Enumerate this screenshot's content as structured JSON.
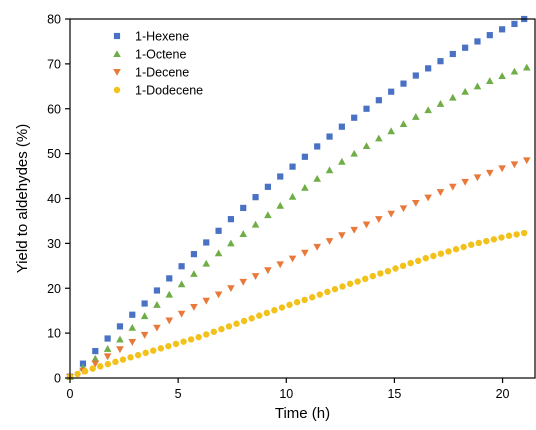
{
  "chart_data": {
    "type": "scatter",
    "xlabel": "Time (h)",
    "ylabel": "Yield to aldehydes (%)",
    "xlim": [
      0,
      21.5
    ],
    "ylim": [
      0,
      80
    ],
    "xticks": [
      0,
      5,
      10,
      15,
      20
    ],
    "yticks": [
      0,
      10,
      20,
      30,
      40,
      50,
      60,
      70,
      80
    ],
    "grid": false,
    "legend_position": "top-left",
    "series": [
      {
        "name": "1-Hexene",
        "marker": "square",
        "color": "#4a72c4",
        "x": [
          0.0,
          0.6,
          1.17,
          1.74,
          2.31,
          2.88,
          3.45,
          4.02,
          4.59,
          5.16,
          5.73,
          6.3,
          6.87,
          7.44,
          8.01,
          8.58,
          9.15,
          9.72,
          10.29,
          10.86,
          11.43,
          12.0,
          12.57,
          13.14,
          13.71,
          14.28,
          14.85,
          15.42,
          15.99,
          16.56,
          17.13,
          17.7,
          18.27,
          18.84,
          19.41,
          19.98,
          20.55,
          21.0
        ],
        "y": [
          0.3,
          3.2,
          6.0,
          8.8,
          11.5,
          14.1,
          16.6,
          19.5,
          22.2,
          24.9,
          27.6,
          30.2,
          32.8,
          35.4,
          37.9,
          40.3,
          42.6,
          44.9,
          47.1,
          49.3,
          51.6,
          53.8,
          56.0,
          58.0,
          60.0,
          61.9,
          63.8,
          65.6,
          67.4,
          69.0,
          70.6,
          72.2,
          73.6,
          75.0,
          76.4,
          77.7,
          78.9,
          80.0
        ]
      },
      {
        "name": "1-Octene",
        "marker": "triangle-up",
        "color": "#6fad47",
        "x": [
          0.0,
          0.6,
          1.17,
          1.74,
          2.31,
          2.88,
          3.45,
          4.02,
          4.59,
          5.16,
          5.73,
          6.3,
          6.87,
          7.44,
          8.01,
          8.58,
          9.15,
          9.72,
          10.29,
          10.86,
          11.43,
          12.0,
          12.57,
          13.14,
          13.71,
          14.28,
          14.85,
          15.42,
          15.99,
          16.56,
          17.13,
          17.7,
          18.27,
          18.84,
          19.41,
          19.98,
          20.55,
          21.12
        ],
        "y": [
          0.3,
          2.3,
          4.3,
          6.5,
          8.6,
          11.2,
          13.8,
          16.3,
          18.6,
          20.9,
          23.2,
          25.5,
          27.8,
          30.0,
          32.1,
          34.2,
          36.3,
          38.4,
          40.4,
          42.4,
          44.4,
          46.3,
          48.2,
          50.0,
          51.7,
          53.4,
          55.0,
          56.6,
          58.2,
          59.7,
          61.1,
          62.5,
          63.8,
          65.0,
          66.2,
          67.3,
          68.3,
          69.2
        ]
      },
      {
        "name": "1-Decene",
        "marker": "triangle-down",
        "color": "#e8793a",
        "x": [
          0.0,
          0.6,
          1.17,
          1.74,
          2.31,
          2.88,
          3.45,
          4.02,
          4.59,
          5.16,
          5.73,
          6.3,
          6.87,
          7.44,
          8.01,
          8.58,
          9.15,
          9.72,
          10.29,
          10.86,
          11.43,
          12.0,
          12.57,
          13.14,
          13.71,
          14.28,
          14.85,
          15.42,
          15.99,
          16.56,
          17.13,
          17.7,
          18.27,
          18.84,
          19.41,
          19.98,
          20.55,
          21.12
        ],
        "y": [
          0.2,
          1.6,
          3.2,
          4.8,
          6.4,
          8.0,
          9.6,
          11.2,
          12.8,
          14.3,
          15.8,
          17.2,
          18.6,
          20.0,
          21.4,
          22.7,
          24.0,
          25.3,
          26.6,
          27.9,
          29.2,
          30.5,
          31.8,
          33.0,
          34.2,
          35.4,
          36.6,
          37.8,
          39.0,
          40.2,
          41.4,
          42.6,
          43.7,
          44.7,
          45.7,
          46.7,
          47.6,
          48.5
        ]
      },
      {
        "name": "1-Dodecene",
        "marker": "circle",
        "color": "#f2c11a",
        "x": [
          0.0,
          0.35,
          0.7,
          1.05,
          1.4,
          1.75,
          2.1,
          2.45,
          2.8,
          3.15,
          3.5,
          3.85,
          4.2,
          4.55,
          4.9,
          5.25,
          5.6,
          5.95,
          6.3,
          6.65,
          7.0,
          7.35,
          7.7,
          8.05,
          8.4,
          8.75,
          9.1,
          9.45,
          9.8,
          10.15,
          10.5,
          10.85,
          11.2,
          11.55,
          11.9,
          12.25,
          12.6,
          12.95,
          13.3,
          13.65,
          14.0,
          14.35,
          14.7,
          15.05,
          15.4,
          15.75,
          16.1,
          16.45,
          16.8,
          17.15,
          17.5,
          17.85,
          18.2,
          18.55,
          18.9,
          19.25,
          19.6,
          19.95,
          20.3,
          20.65,
          21.0
        ],
        "y": [
          0.3,
          0.9,
          1.5,
          2.1,
          2.6,
          3.1,
          3.6,
          4.1,
          4.6,
          5.1,
          5.6,
          6.1,
          6.6,
          7.1,
          7.6,
          8.1,
          8.6,
          9.1,
          9.7,
          10.3,
          10.9,
          11.5,
          12.1,
          12.7,
          13.3,
          13.9,
          14.5,
          15.1,
          15.7,
          16.3,
          16.9,
          17.4,
          18.0,
          18.6,
          19.2,
          19.8,
          20.4,
          21.0,
          21.5,
          22.1,
          22.7,
          23.3,
          23.8,
          24.4,
          25.0,
          25.6,
          26.1,
          26.7,
          27.2,
          27.7,
          28.2,
          28.7,
          29.2,
          29.7,
          30.1,
          30.5,
          30.9,
          31.3,
          31.7,
          32.0,
          32.3
        ]
      }
    ]
  }
}
